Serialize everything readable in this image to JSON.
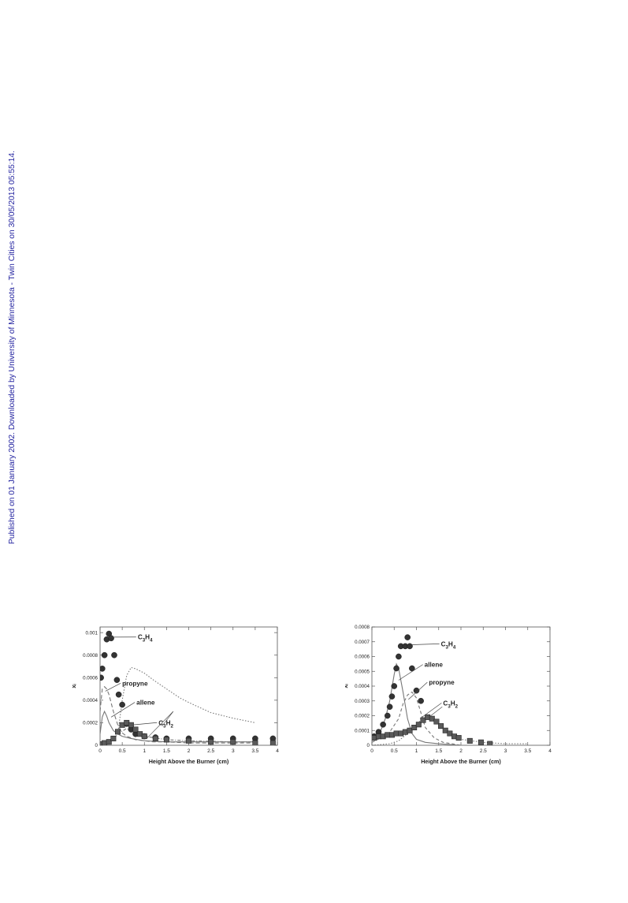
{
  "watermark": "Published on 01 January 2002. Downloaded by University of Minnesota - Twin Cities on 30/05/2013 05:55:14.",
  "colors": {
    "watermark": "#1f1f9e",
    "frame": "#555555",
    "ink": "#222222",
    "marker": "#333333",
    "curve": "#777777"
  },
  "chart_data": [
    {
      "type": "scatter",
      "xlabel": "Height Above the Burner (cm)",
      "ylabel": "xᵢ",
      "xlim": [
        0,
        4
      ],
      "ylim": [
        0,
        0.00105
      ],
      "x_ticks": [
        "0",
        "0.5",
        "1",
        "1.5",
        "2",
        "2.5",
        "3",
        "3.5",
        "4"
      ],
      "y_ticks": [
        {
          "value": 0,
          "label": "0"
        },
        {
          "value": 0.0002,
          "label": "0.0002"
        },
        {
          "value": 0.0004,
          "label": "0.0004"
        },
        {
          "value": 0.0006,
          "label": "0.0006"
        },
        {
          "value": 0.0008,
          "label": "0.0008"
        },
        {
          "value": 0.001,
          "label": "0.001"
        }
      ],
      "series": [
        {
          "name": "C₃H₄",
          "kind": "points",
          "marker": "circle",
          "x": [
            0.02,
            0.05,
            0.1,
            0.15,
            0.2,
            0.25,
            0.32,
            0.38,
            0.42,
            0.5,
            0.6,
            0.7,
            0.8,
            1.0,
            1.25,
            1.5,
            2.0,
            2.5,
            3.0,
            3.5,
            3.9
          ],
          "y": [
            0.0006,
            0.00068,
            0.0008,
            0.00094,
            0.00099,
            0.00095,
            0.0008,
            0.00058,
            0.00045,
            0.00036,
            0.00019,
            0.00014,
            0.0001,
            8e-05,
            7e-05,
            6e-05,
            6e-05,
            6e-05,
            6e-05,
            6e-05,
            6e-05
          ]
        },
        {
          "name": "C₃H₂",
          "kind": "points",
          "marker": "square",
          "x": [
            0.05,
            0.1,
            0.2,
            0.3,
            0.4,
            0.5,
            0.6,
            0.7,
            0.8,
            0.9,
            1.0,
            1.25,
            1.5,
            2.0,
            2.5,
            3.0,
            3.5,
            3.9
          ],
          "y": [
            1e-05,
            2e-05,
            3e-05,
            6e-05,
            0.00012,
            0.00018,
            0.0002,
            0.00018,
            0.00014,
            0.0001,
            8e-05,
            6e-05,
            5e-05,
            4e-05,
            3e-05,
            3e-05,
            2e-05,
            2e-05
          ]
        },
        {
          "name": "propyne",
          "kind": "line",
          "dash": "5,3",
          "x": [
            0,
            0.05,
            0.1,
            0.15,
            0.2,
            0.3,
            0.4,
            0.5,
            0.6,
            0.8,
            1.0,
            1.2,
            1.5,
            2.0,
            2.5,
            3.0,
            3.5
          ],
          "y": [
            0.0003,
            0.0005,
            0.00052,
            0.0005,
            0.00045,
            0.0003,
            0.00018,
            0.00011,
            8e-05,
            5e-05,
            4e-05,
            3e-05,
            3e-05,
            2e-05,
            2e-05,
            2e-05,
            2e-05
          ]
        },
        {
          "name": "allene",
          "kind": "line",
          "dash": "",
          "x": [
            0,
            0.05,
            0.1,
            0.15,
            0.2,
            0.3,
            0.4,
            0.5,
            0.7,
            1.0,
            1.5,
            2.0,
            2.5,
            3.0,
            3.5
          ],
          "y": [
            0.0001,
            0.00025,
            0.0003,
            0.00026,
            0.0002,
            0.00013,
            0.0001,
            8e-05,
            6e-05,
            4e-05,
            3e-05,
            3e-05,
            3e-05,
            3e-05,
            3e-05
          ]
        },
        {
          "name": "",
          "kind": "line",
          "dash": "1.5,2",
          "x": [
            0,
            0.2,
            0.4,
            0.5,
            0.6,
            0.7,
            0.8,
            0.9,
            1.0,
            1.2,
            1.5,
            1.8,
            2.0,
            2.5,
            3.0,
            3.5
          ],
          "y": [
            0,
            1e-05,
            0.0001,
            0.0004,
            0.00062,
            0.00069,
            0.00068,
            0.00066,
            0.00064,
            0.00058,
            0.0005,
            0.00042,
            0.00038,
            0.00029,
            0.00024,
            0.0002
          ]
        },
        {
          "name": "",
          "kind": "line",
          "dash": "4,2,1,2",
          "x": [
            0,
            0.2,
            0.4,
            0.6,
            0.8,
            1.0,
            1.5,
            2.0,
            3.0,
            3.5
          ],
          "y": [
            0,
            2e-05,
            0.0001,
            0.00015,
            0.00012,
            8e-05,
            5e-05,
            4e-05,
            3e-05,
            3e-05
          ]
        }
      ],
      "annotations": [
        {
          "text": "C₃H₄",
          "x": 0.85,
          "y": 0.00094,
          "to": [
            0.22,
            0.00096
          ]
        },
        {
          "text": "propyne",
          "x": 0.5,
          "y": 0.00053,
          "to": [
            0.12,
            0.00048
          ]
        },
        {
          "text": "allene",
          "x": 0.82,
          "y": 0.00036,
          "to": [
            0.25,
            0.00025
          ]
        },
        {
          "text": "C₃H₂",
          "x": 1.32,
          "y": 0.00018,
          "to": [
            0.72,
            0.00018
          ]
        }
      ],
      "extra_arrows": [
        {
          "from": [
            1.65,
            0.0003
          ],
          "to": [
            1.4,
            0.00017
          ]
        },
        {
          "from": [
            1.65,
            0.0003
          ],
          "to": [
            1.05,
            6e-05
          ]
        }
      ]
    },
    {
      "type": "scatter",
      "xlabel": "Height Above the Burner (cm)",
      "ylabel": "xᵢ",
      "xlim": [
        0,
        4
      ],
      "ylim": [
        0,
        0.0008
      ],
      "x_ticks": [
        "0",
        "0.5",
        "1",
        "1.5",
        "2",
        "2.5",
        "3",
        "3.5",
        "4"
      ],
      "y_ticks": [
        {
          "value": 0,
          "label": "0"
        },
        {
          "value": 0.0001,
          "label": "0.0001"
        },
        {
          "value": 0.0002,
          "label": "0.0002"
        },
        {
          "value": 0.0003,
          "label": "0.0003"
        },
        {
          "value": 0.0004,
          "label": "0.0004"
        },
        {
          "value": 0.0005,
          "label": "0.0005"
        },
        {
          "value": 0.0006,
          "label": "0.0006"
        },
        {
          "value": 0.0007,
          "label": "0.0007"
        },
        {
          "value": 0.0008,
          "label": "0.0008"
        }
      ],
      "series": [
        {
          "name": "C₃H₄",
          "kind": "points",
          "marker": "circle",
          "x": [
            0.05,
            0.15,
            0.25,
            0.35,
            0.4,
            0.45,
            0.5,
            0.55,
            0.6,
            0.65,
            0.75,
            0.8,
            0.85,
            0.9,
            1.0,
            1.1
          ],
          "y": [
            6e-05,
            9e-05,
            0.00014,
            0.0002,
            0.00026,
            0.00033,
            0.0004,
            0.00052,
            0.0006,
            0.00067,
            0.00067,
            0.00073,
            0.00067,
            0.00052,
            0.00037,
            0.0003
          ],
          "labelled": true
        },
        {
          "name": "C₃H₂",
          "kind": "points",
          "marker": "square",
          "x": [
            0.05,
            0.15,
            0.25,
            0.35,
            0.45,
            0.55,
            0.65,
            0.75,
            0.85,
            0.95,
            1.05,
            1.15,
            1.25,
            1.35,
            1.45,
            1.55,
            1.65,
            1.75,
            1.85,
            1.95,
            2.2,
            2.45,
            2.65
          ],
          "y": [
            5e-05,
            6e-05,
            6e-05,
            7e-05,
            7e-05,
            8e-05,
            8e-05,
            9e-05,
            0.0001,
            0.00012,
            0.00014,
            0.00017,
            0.00019,
            0.00018,
            0.00016,
            0.00013,
            0.0001,
            8e-05,
            6e-05,
            5e-05,
            3e-05,
            2e-05,
            1e-05
          ]
        },
        {
          "name": "propyne",
          "kind": "line",
          "dash": "",
          "x": [
            0,
            0.1,
            0.2,
            0.3,
            0.4,
            0.5,
            0.55,
            0.6,
            0.7,
            0.8,
            0.9,
            1.0,
            1.2,
            1.5,
            2.0,
            2.5
          ],
          "y": [
            4e-05,
            6e-05,
            0.0001,
            0.00018,
            0.0003,
            0.00048,
            0.00055,
            0.00052,
            0.00036,
            0.00018,
            8e-05,
            4e-05,
            2e-05,
            1e-05,
            0,
            0
          ]
        },
        {
          "name": "allene",
          "kind": "line",
          "dash": "4,3",
          "x": [
            0,
            0.2,
            0.4,
            0.6,
            0.7,
            0.8,
            0.9,
            1.0,
            1.1,
            1.2,
            1.4,
            1.6,
            2.0
          ],
          "y": [
            2e-05,
            5e-05,
            9e-05,
            0.00018,
            0.00028,
            0.00034,
            0.00036,
            0.00032,
            0.00022,
            0.00012,
            5e-05,
            2e-05,
            0
          ]
        },
        {
          "name": "",
          "kind": "line",
          "dash": "1.5,2",
          "x": [
            0,
            0.4,
            0.6,
            0.8,
            1.0,
            1.1,
            1.2,
            1.3,
            1.4,
            1.6,
            1.8,
            2.0,
            2.5,
            3.0,
            3.5
          ],
          "y": [
            0,
            1e-05,
            3e-05,
            8e-05,
            0.00014,
            0.00017,
            0.00019,
            0.00019,
            0.00017,
            0.00011,
            6e-05,
            4e-05,
            2e-05,
            1e-05,
            1e-05
          ]
        }
      ],
      "annotations": [
        {
          "text": "C₃H₄",
          "x": 1.55,
          "y": 0.00067,
          "to": [
            0.9,
            0.00068
          ]
        },
        {
          "text": "allene",
          "x": 1.18,
          "y": 0.00053,
          "to": [
            0.6,
            0.00044
          ]
        },
        {
          "text": "propyne",
          "x": 1.28,
          "y": 0.00041,
          "to": [
            0.82,
            0.00031
          ]
        },
        {
          "text": "C₃H₂",
          "x": 1.6,
          "y": 0.00027,
          "to": [
            1.08,
            0.00018
          ]
        }
      ],
      "extra_arrows": [
        {
          "from": [
            1.58,
            0.00026
          ],
          "to": [
            1.28,
            0.00019
          ]
        }
      ]
    }
  ]
}
